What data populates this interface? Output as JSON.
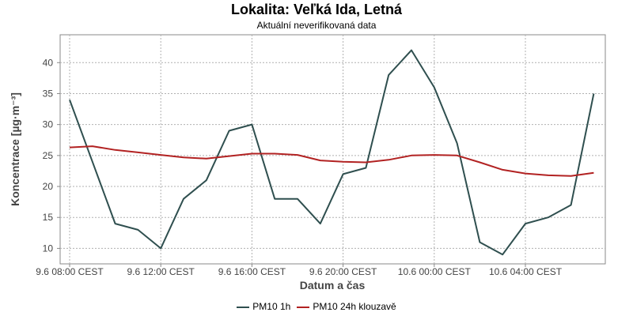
{
  "title": "Lokalita: Veľká Ida, Letná",
  "subtitle": "Aktuální neverifikovaná data",
  "chart_data": {
    "type": "line",
    "xlabel": "Datum a čas",
    "ylabel": "Koncentrace [µg·m⁻³]",
    "x_ticks": [
      "9.6 08:00 CEST",
      "9.6 12:00 CEST",
      "9.6 16:00 CEST",
      "9.6 20:00 CEST",
      "10.6 00:00 CEST",
      "10.6 04:00 CEST"
    ],
    "x": [
      "9.6 08:00",
      "9.6 09:00",
      "9.6 10:00",
      "9.6 11:00",
      "9.6 12:00",
      "9.6 13:00",
      "9.6 14:00",
      "9.6 15:00",
      "9.6 16:00",
      "9.6 17:00",
      "9.6 18:00",
      "9.6 19:00",
      "9.6 20:00",
      "9.6 21:00",
      "9.6 22:00",
      "9.6 23:00",
      "10.6 00:00",
      "10.6 01:00",
      "10.6 02:00",
      "10.6 03:00",
      "10.6 04:00",
      "10.6 05:00",
      "10.6 06:00",
      "10.6 07:00"
    ],
    "ylim": [
      7.5,
      44.5
    ],
    "y_ticks": [
      10,
      15,
      20,
      25,
      30,
      35,
      40
    ],
    "grid": true,
    "legend_position": "bottom",
    "series": [
      {
        "name": "PM10 1h",
        "color": "#2f4f4f",
        "values": [
          34,
          24,
          14,
          13,
          10,
          18,
          21,
          29,
          30,
          18,
          18,
          14,
          22,
          23,
          38,
          42,
          36,
          27,
          11,
          9,
          14,
          15,
          17,
          35
        ]
      },
      {
        "name": "PM10 24h klouzavě",
        "color": "#b22222",
        "values": [
          26.3,
          26.5,
          25.9,
          25.5,
          25.1,
          24.7,
          24.5,
          24.9,
          25.3,
          25.3,
          25.1,
          24.2,
          24.0,
          23.9,
          24.3,
          25.0,
          25.1,
          25.0,
          23.9,
          22.7,
          22.1,
          21.8,
          21.7,
          22.2
        ]
      }
    ]
  }
}
